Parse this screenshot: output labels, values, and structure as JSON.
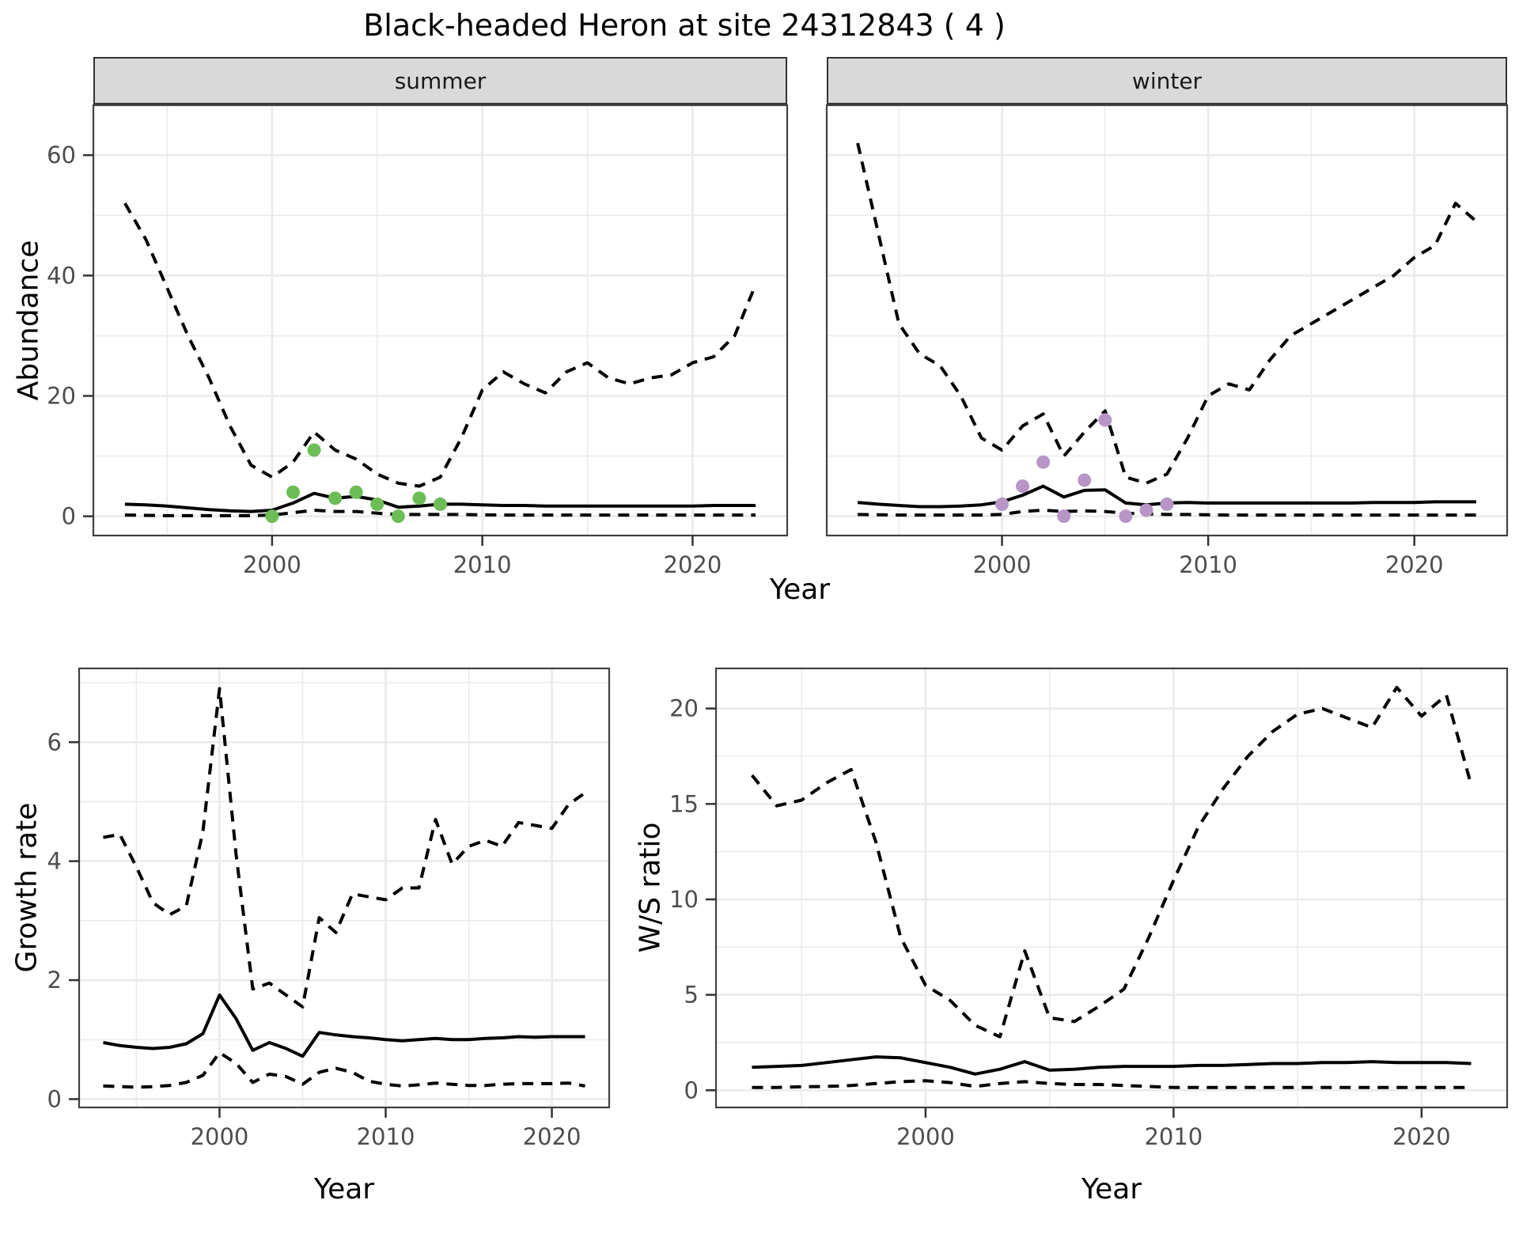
{
  "title": "Black-headed Heron at site 24312843 ( 4 )",
  "colors": {
    "background": "#ffffff",
    "gridline": "#ebebeb",
    "panel_border": "#404040",
    "strip_background": "#d9d9d9",
    "tick_text": "#4d4d4d",
    "line": "#000000",
    "summer_point": "#6dbd57",
    "winter_point": "#b795c7"
  },
  "chart_data": [
    {
      "type": "line",
      "strip": "summer",
      "xlabel": "Year",
      "ylabel": "Abundance",
      "xlim": [
        1991.5,
        2024.5
      ],
      "ylim": [
        -3.2,
        68.3
      ],
      "x_major_ticks": [
        2000,
        2010,
        2020
      ],
      "x_minor_ticks": [
        1995,
        2005,
        2015
      ],
      "y_major_ticks": [
        0,
        20,
        40,
        60
      ],
      "y_minor_ticks": [
        10,
        30,
        50
      ],
      "grid": "on",
      "legend": "none",
      "years": [
        1993,
        1994,
        1995,
        1996,
        1997,
        1998,
        1999,
        2000,
        2001,
        2002,
        2003,
        2004,
        2005,
        2006,
        2007,
        2008,
        2009,
        2010,
        2011,
        2012,
        2013,
        2014,
        2015,
        2016,
        2017,
        2018,
        2019,
        2020,
        2021,
        2022,
        2023
      ],
      "series": [
        {
          "name": "upper_ci",
          "style": "dashed",
          "values": [
            52,
            46,
            38,
            30,
            23,
            15,
            8.5,
            6.5,
            9,
            14,
            11,
            9.5,
            7,
            5.5,
            5,
            6.5,
            13,
            21,
            24,
            22,
            20.5,
            24,
            25.5,
            23,
            22,
            23,
            23.5,
            25.5,
            26.5,
            30,
            38.5
          ]
        },
        {
          "name": "fit",
          "style": "solid",
          "values": [
            2.0,
            1.9,
            1.7,
            1.4,
            1.1,
            0.9,
            0.8,
            1.0,
            2.2,
            3.8,
            3.0,
            3.3,
            2.7,
            1.5,
            1.7,
            2.0,
            2.0,
            1.9,
            1.8,
            1.8,
            1.7,
            1.7,
            1.7,
            1.7,
            1.7,
            1.7,
            1.7,
            1.7,
            1.8,
            1.8,
            1.8
          ]
        },
        {
          "name": "lower_ci",
          "style": "dashed",
          "values": [
            0.2,
            0.15,
            0.1,
            0.1,
            0.1,
            0.1,
            0.1,
            0.2,
            0.6,
            1.0,
            0.8,
            0.8,
            0.5,
            0.3,
            0.3,
            0.3,
            0.3,
            0.25,
            0.2,
            0.2,
            0.2,
            0.2,
            0.2,
            0.2,
            0.2,
            0.2,
            0.2,
            0.2,
            0.2,
            0.2,
            0.2
          ]
        }
      ],
      "points": {
        "name": "summer_observations",
        "color": "#6dbd57",
        "years": [
          2000,
          2001,
          2002,
          2003,
          2004,
          2005,
          2006,
          2007,
          2008
        ],
        "values": [
          0,
          4,
          11,
          3,
          4,
          2,
          0,
          3,
          2
        ]
      }
    },
    {
      "type": "line",
      "strip": "winter",
      "xlabel": "Year",
      "ylabel": "Abundance",
      "xlim": [
        1991.5,
        2024.5
      ],
      "ylim": [
        -3.2,
        68.3
      ],
      "x_major_ticks": [
        2000,
        2010,
        2020
      ],
      "x_minor_ticks": [
        1995,
        2005,
        2015
      ],
      "y_major_ticks": [
        0,
        20,
        40,
        60
      ],
      "y_minor_ticks": [
        10,
        30,
        50
      ],
      "grid": "on",
      "legend": "none",
      "years": [
        1993,
        1994,
        1995,
        1996,
        1997,
        1998,
        1999,
        2000,
        2001,
        2002,
        2003,
        2004,
        2005,
        2006,
        2007,
        2008,
        2009,
        2010,
        2011,
        2012,
        2013,
        2014,
        2015,
        2016,
        2017,
        2018,
        2019,
        2020,
        2021,
        2022,
        2023
      ],
      "series": [
        {
          "name": "upper_ci",
          "style": "dashed",
          "values": [
            62,
            47,
            32,
            27,
            25,
            20,
            13,
            11,
            15,
            17,
            10,
            14,
            17.5,
            6.5,
            5.5,
            7,
            13,
            20,
            22,
            21,
            26,
            30,
            32,
            34,
            36,
            38,
            40,
            43,
            45,
            52,
            49
          ]
        },
        {
          "name": "fit",
          "style": "solid",
          "values": [
            2.3,
            2.0,
            1.8,
            1.6,
            1.6,
            1.7,
            1.9,
            2.4,
            3.5,
            5.0,
            3.2,
            4.3,
            4.4,
            2.2,
            1.9,
            2.2,
            2.3,
            2.2,
            2.2,
            2.2,
            2.2,
            2.2,
            2.2,
            2.2,
            2.2,
            2.3,
            2.3,
            2.3,
            2.4,
            2.4,
            2.4
          ]
        },
        {
          "name": "lower_ci",
          "style": "dashed",
          "values": [
            0.3,
            0.25,
            0.2,
            0.2,
            0.2,
            0.2,
            0.2,
            0.3,
            0.8,
            1.0,
            0.8,
            0.9,
            0.8,
            0.5,
            0.4,
            0.3,
            0.3,
            0.25,
            0.2,
            0.2,
            0.2,
            0.2,
            0.2,
            0.2,
            0.2,
            0.2,
            0.2,
            0.2,
            0.2,
            0.2,
            0.2
          ]
        }
      ],
      "points": {
        "name": "winter_observations",
        "color": "#b795c7",
        "years": [
          2000,
          2001,
          2002,
          2003,
          2004,
          2005,
          2006,
          2007,
          2008
        ],
        "values": [
          2,
          5,
          9,
          0,
          6,
          16,
          0,
          1,
          2
        ]
      }
    },
    {
      "type": "line",
      "strip": "",
      "xlabel": "Year",
      "ylabel": "Growth rate",
      "xlim": [
        1991.55,
        2023.45
      ],
      "ylim": [
        -0.14,
        7.24
      ],
      "x_major_ticks": [
        2000,
        2010,
        2020
      ],
      "x_minor_ticks": [
        1995,
        2005,
        2015
      ],
      "y_major_ticks": [
        0,
        2,
        4,
        6
      ],
      "y_minor_ticks": [
        1,
        3,
        5,
        7
      ],
      "grid": "on",
      "legend": "none",
      "years": [
        1993,
        1994,
        1995,
        1996,
        1997,
        1998,
        1999,
        2000,
        2001,
        2002,
        2003,
        2004,
        2005,
        2006,
        2007,
        2008,
        2009,
        2010,
        2011,
        2012,
        2013,
        2014,
        2015,
        2016,
        2017,
        2018,
        2019,
        2020,
        2021,
        2022
      ],
      "series": [
        {
          "name": "upper_ci",
          "style": "dashed",
          "values": [
            4.4,
            4.45,
            3.9,
            3.3,
            3.1,
            3.25,
            4.5,
            6.9,
            4.1,
            1.85,
            1.95,
            1.75,
            1.55,
            3.05,
            2.8,
            3.45,
            3.4,
            3.35,
            3.55,
            3.55,
            4.7,
            3.95,
            4.25,
            4.35,
            4.25,
            4.65,
            4.6,
            4.55,
            4.95,
            5.15
          ]
        },
        {
          "name": "fit",
          "style": "solid",
          "values": [
            0.95,
            0.9,
            0.87,
            0.85,
            0.87,
            0.93,
            1.1,
            1.75,
            1.35,
            0.82,
            0.95,
            0.85,
            0.72,
            1.12,
            1.08,
            1.05,
            1.03,
            1.0,
            0.98,
            1.0,
            1.02,
            1.0,
            1.0,
            1.02,
            1.03,
            1.05,
            1.04,
            1.05,
            1.05,
            1.05
          ]
        },
        {
          "name": "lower_ci",
          "style": "dashed",
          "values": [
            0.22,
            0.21,
            0.2,
            0.21,
            0.23,
            0.28,
            0.4,
            0.78,
            0.6,
            0.28,
            0.42,
            0.38,
            0.25,
            0.45,
            0.52,
            0.45,
            0.3,
            0.25,
            0.22,
            0.24,
            0.27,
            0.25,
            0.23,
            0.23,
            0.25,
            0.26,
            0.26,
            0.26,
            0.27,
            0.22
          ]
        }
      ],
      "points": null
    },
    {
      "type": "line",
      "strip": "",
      "xlabel": "Year",
      "ylabel": "W/S ratio",
      "xlim": [
        1991.55,
        2023.45
      ],
      "ylim": [
        -0.9,
        22.1
      ],
      "x_major_ticks": [
        2000,
        2010,
        2020
      ],
      "x_minor_ticks": [
        1995,
        2005,
        2015
      ],
      "y_major_ticks": [
        0,
        5,
        10,
        15,
        20
      ],
      "y_minor_ticks": [
        2.5,
        7.5,
        12.5,
        17.5
      ],
      "grid": "on",
      "legend": "none",
      "years": [
        1993,
        1994,
        1995,
        1996,
        1997,
        1998,
        1999,
        2000,
        2001,
        2002,
        2003,
        2004,
        2005,
        2006,
        2007,
        2008,
        2009,
        2010,
        2011,
        2012,
        2013,
        2014,
        2015,
        2016,
        2017,
        2018,
        2019,
        2020,
        2021,
        2022
      ],
      "series": [
        {
          "name": "upper_ci",
          "style": "dashed",
          "values": [
            16.5,
            14.9,
            15.2,
            16.1,
            16.8,
            13.0,
            8.0,
            5.5,
            4.7,
            3.4,
            2.8,
            7.3,
            3.8,
            3.6,
            4.4,
            5.3,
            8.0,
            11.0,
            13.8,
            15.8,
            17.5,
            18.8,
            19.7,
            20.0,
            19.5,
            19.0,
            21.1,
            19.6,
            20.7,
            16.0
          ]
        },
        {
          "name": "fit",
          "style": "solid",
          "values": [
            1.2,
            1.25,
            1.3,
            1.45,
            1.6,
            1.75,
            1.7,
            1.45,
            1.2,
            0.85,
            1.1,
            1.5,
            1.05,
            1.1,
            1.2,
            1.25,
            1.25,
            1.25,
            1.3,
            1.3,
            1.35,
            1.4,
            1.4,
            1.45,
            1.45,
            1.5,
            1.45,
            1.45,
            1.45,
            1.4
          ]
        },
        {
          "name": "lower_ci",
          "style": "dashed",
          "values": [
            0.15,
            0.15,
            0.18,
            0.2,
            0.25,
            0.35,
            0.45,
            0.5,
            0.4,
            0.2,
            0.35,
            0.45,
            0.35,
            0.3,
            0.3,
            0.25,
            0.2,
            0.15,
            0.15,
            0.15,
            0.15,
            0.15,
            0.15,
            0.15,
            0.15,
            0.15,
            0.15,
            0.15,
            0.15,
            0.15
          ]
        }
      ],
      "points": null
    }
  ]
}
